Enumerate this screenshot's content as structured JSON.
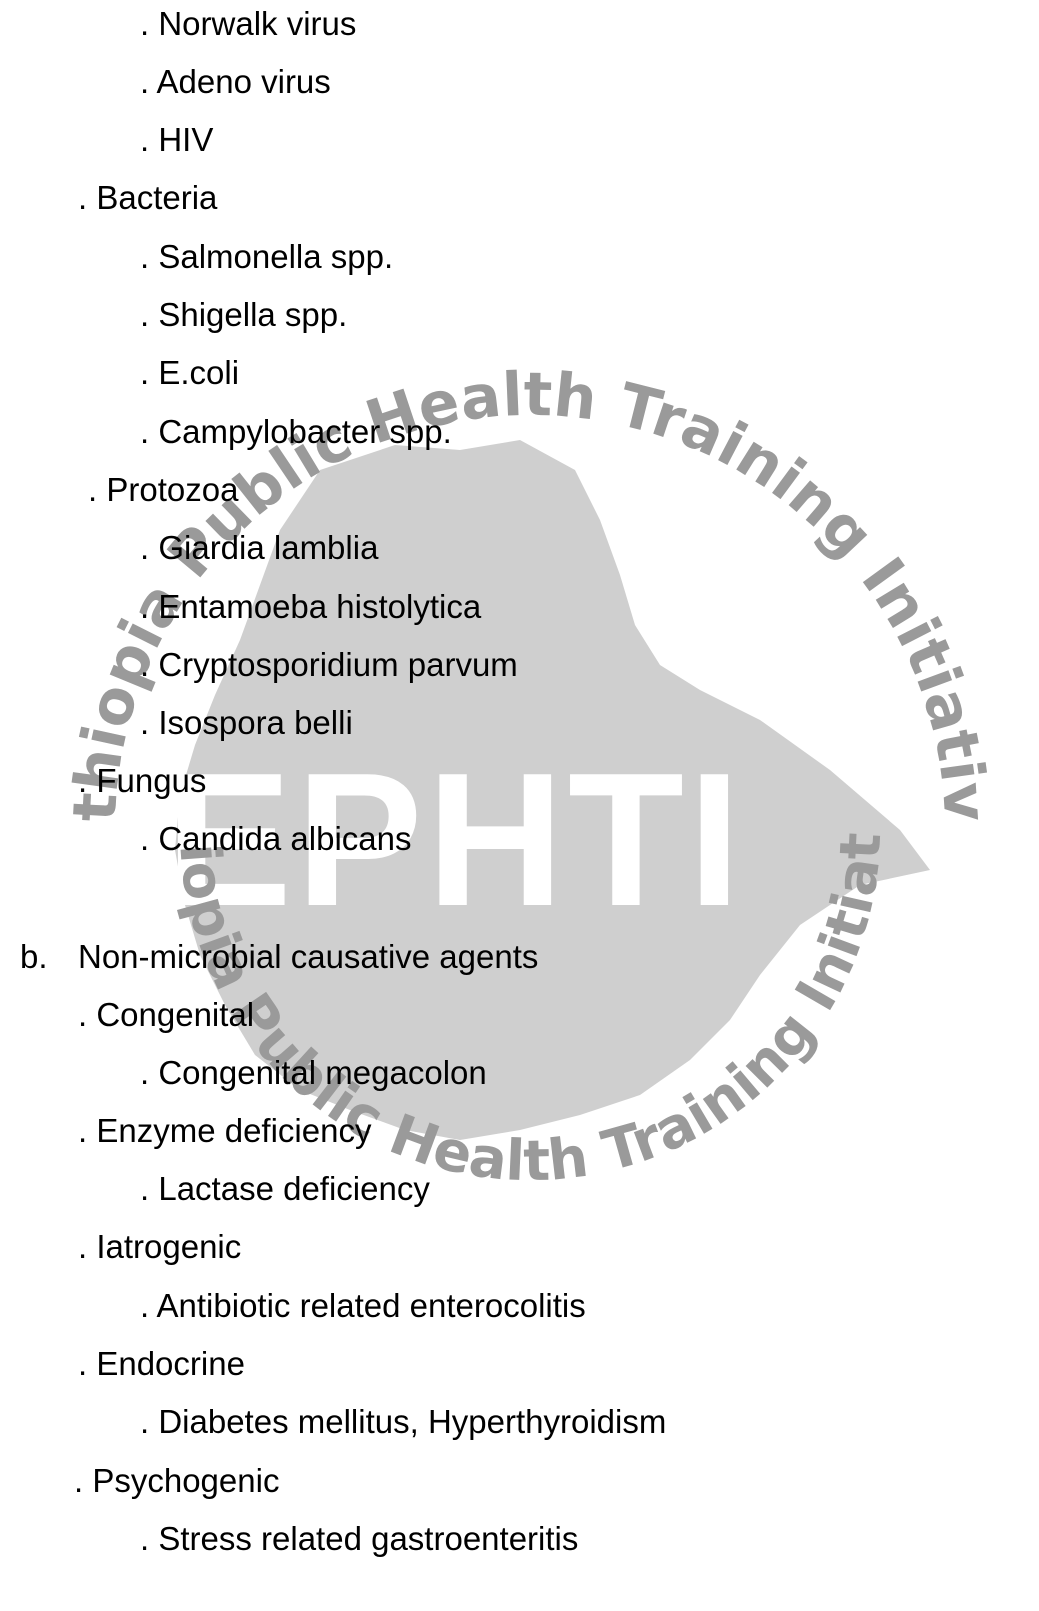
{
  "watermark": {
    "top_arc_text": "Ethiopia Public Health Training Initiative",
    "bottom_arc_text": "Ethiopia Public Health Training Initiative",
    "center_text": "EPHTI",
    "separator": "•",
    "color": "#9a9a9a",
    "map_color": "#c9c9c9"
  },
  "document": {
    "virus_items": [
      ". Norwalk virus",
      ". Adeno virus",
      ". HIV"
    ],
    "bacteria_heading": ". Bacteria",
    "bacteria_items": [
      ". Salmonella spp.",
      ". Shigella spp.",
      ". E.coli",
      ". Campylobacter spp."
    ],
    "protozoa_heading": ". Protozoa",
    "protozoa_items": [
      ". Giardia lamblia",
      ". Entamoeba histolytica",
      ". Cryptosporidium parvum",
      ". Isospora belli"
    ],
    "fungus_heading": ". Fungus",
    "fungus_items": [
      ". Candida albicans"
    ],
    "section_b": {
      "label": "b.",
      "title": "Non-microbial causative agents"
    },
    "congenital_heading": ". Congenital",
    "congenital_item": ". Congenital megacolon",
    "enzyme_heading": ". Enzyme deficiency",
    "enzyme_item": ". Lactase deficiency",
    "iatrogenic_heading": ". Iatrogenic",
    "iatrogenic_item": ". Antibiotic related enterocolitis",
    "endocrine_heading": ". Endocrine",
    "endocrine_item": ". Diabetes mellitus, Hyperthyroidism",
    "psychogenic_heading": ". Psychogenic",
    "psychogenic_item": ". Stress related gastroenteritis"
  }
}
